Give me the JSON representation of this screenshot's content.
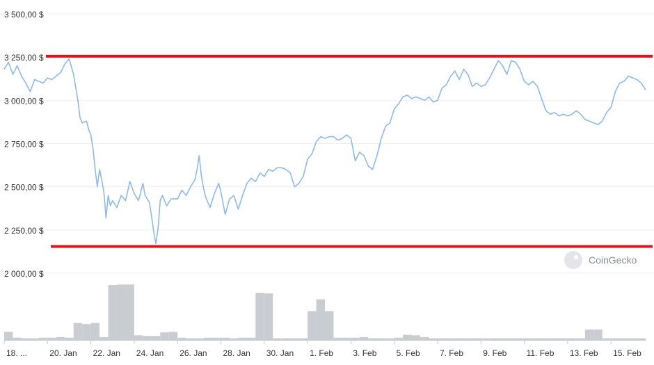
{
  "chart_data": {
    "type": "line",
    "watermark": "CoinGecko",
    "colors": {
      "price_line": "#8fb8ec",
      "volume": "#c9cdd2",
      "support_resistance": "#e0141e",
      "gridline": "#eef0f2"
    },
    "y_axis": {
      "ylim": [
        2000,
        3500
      ],
      "ticks": [
        {
          "value": 3500,
          "label": "3 500,00 $"
        },
        {
          "value": 3250,
          "label": "3 250,00 $"
        },
        {
          "value": 3000,
          "label": "3 000,00 $"
        },
        {
          "value": 2750,
          "label": "2 750,00 $"
        },
        {
          "value": 2500,
          "label": "2 500,00 $"
        },
        {
          "value": 2250,
          "label": "2 250,00 $"
        },
        {
          "value": 2000,
          "label": "2 000,00 $"
        }
      ]
    },
    "x_axis": {
      "xlim": [
        0,
        29.6
      ],
      "ticks": [
        {
          "value": 0.0,
          "label": "18. ..."
        },
        {
          "value": 2.0,
          "label": "20. Jan"
        },
        {
          "value": 4.0,
          "label": "22. Jan"
        },
        {
          "value": 6.0,
          "label": "24. Jan"
        },
        {
          "value": 8.0,
          "label": "26. Jan"
        },
        {
          "value": 10.0,
          "label": "28. Jan"
        },
        {
          "value": 12.0,
          "label": "30. Jan"
        },
        {
          "value": 14.0,
          "label": "1. Feb"
        },
        {
          "value": 16.0,
          "label": "3. Feb"
        },
        {
          "value": 18.0,
          "label": "5. Feb"
        },
        {
          "value": 20.0,
          "label": "7. Feb"
        },
        {
          "value": 22.0,
          "label": "9. Feb"
        },
        {
          "value": 24.0,
          "label": "11. Feb"
        },
        {
          "value": 26.0,
          "label": "13. Feb"
        },
        {
          "value": 28.0,
          "label": "15. Feb"
        }
      ]
    },
    "horizontal_lines": [
      {
        "name": "resistance",
        "y": 3255
      },
      {
        "name": "support",
        "y": 2155
      }
    ],
    "price_series": {
      "points": [
        [
          0.0,
          3180
        ],
        [
          0.2,
          3220
        ],
        [
          0.4,
          3150
        ],
        [
          0.6,
          3200
        ],
        [
          0.8,
          3140
        ],
        [
          1.0,
          3100
        ],
        [
          1.2,
          3050
        ],
        [
          1.4,
          3120
        ],
        [
          1.6,
          3110
        ],
        [
          1.8,
          3100
        ],
        [
          2.0,
          3130
        ],
        [
          2.2,
          3120
        ],
        [
          2.4,
          3140
        ],
        [
          2.6,
          3160
        ],
        [
          2.8,
          3210
        ],
        [
          3.0,
          3240
        ],
        [
          3.2,
          3150
        ],
        [
          3.4,
          3000
        ],
        [
          3.5,
          2900
        ],
        [
          3.6,
          2870
        ],
        [
          3.8,
          2880
        ],
        [
          3.9,
          2830
        ],
        [
          4.0,
          2800
        ],
        [
          4.1,
          2720
        ],
        [
          4.2,
          2600
        ],
        [
          4.3,
          2500
        ],
        [
          4.4,
          2600
        ],
        [
          4.5,
          2540
        ],
        [
          4.6,
          2470
        ],
        [
          4.7,
          2320
        ],
        [
          4.8,
          2450
        ],
        [
          4.9,
          2390
        ],
        [
          5.0,
          2420
        ],
        [
          5.2,
          2380
        ],
        [
          5.4,
          2450
        ],
        [
          5.6,
          2420
        ],
        [
          5.8,
          2530
        ],
        [
          6.0,
          2460
        ],
        [
          6.2,
          2420
        ],
        [
          6.4,
          2520
        ],
        [
          6.5,
          2450
        ],
        [
          6.7,
          2410
        ],
        [
          6.8,
          2330
        ],
        [
          6.9,
          2240
        ],
        [
          7.0,
          2170
        ],
        [
          7.1,
          2260
        ],
        [
          7.2,
          2420
        ],
        [
          7.3,
          2450
        ],
        [
          7.5,
          2390
        ],
        [
          7.7,
          2430
        ],
        [
          8.0,
          2430
        ],
        [
          8.2,
          2480
        ],
        [
          8.4,
          2450
        ],
        [
          8.6,
          2500
        ],
        [
          8.8,
          2540
        ],
        [
          8.9,
          2600
        ],
        [
          9.0,
          2680
        ],
        [
          9.1,
          2560
        ],
        [
          9.2,
          2490
        ],
        [
          9.3,
          2440
        ],
        [
          9.5,
          2380
        ],
        [
          9.7,
          2460
        ],
        [
          9.9,
          2520
        ],
        [
          10.0,
          2470
        ],
        [
          10.2,
          2340
        ],
        [
          10.4,
          2430
        ],
        [
          10.6,
          2450
        ],
        [
          10.8,
          2370
        ],
        [
          11.0,
          2450
        ],
        [
          11.2,
          2520
        ],
        [
          11.4,
          2550
        ],
        [
          11.6,
          2530
        ],
        [
          11.8,
          2580
        ],
        [
          12.0,
          2560
        ],
        [
          12.2,
          2600
        ],
        [
          12.4,
          2590
        ],
        [
          12.6,
          2610
        ],
        [
          12.8,
          2610
        ],
        [
          13.0,
          2600
        ],
        [
          13.2,
          2580
        ],
        [
          13.4,
          2500
        ],
        [
          13.6,
          2520
        ],
        [
          13.8,
          2560
        ],
        [
          14.0,
          2660
        ],
        [
          14.2,
          2690
        ],
        [
          14.4,
          2760
        ],
        [
          14.6,
          2790
        ],
        [
          14.8,
          2780
        ],
        [
          15.0,
          2790
        ],
        [
          15.2,
          2790
        ],
        [
          15.4,
          2770
        ],
        [
          15.6,
          2780
        ],
        [
          15.8,
          2800
        ],
        [
          16.0,
          2780
        ],
        [
          16.2,
          2650
        ],
        [
          16.4,
          2700
        ],
        [
          16.6,
          2680
        ],
        [
          16.8,
          2620
        ],
        [
          17.0,
          2600
        ],
        [
          17.2,
          2680
        ],
        [
          17.4,
          2780
        ],
        [
          17.6,
          2850
        ],
        [
          17.8,
          2870
        ],
        [
          18.0,
          2950
        ],
        [
          18.2,
          2980
        ],
        [
          18.4,
          3020
        ],
        [
          18.6,
          3030
        ],
        [
          18.8,
          3010
        ],
        [
          19.0,
          3020
        ],
        [
          19.2,
          3010
        ],
        [
          19.4,
          3000
        ],
        [
          19.6,
          3020
        ],
        [
          19.8,
          2990
        ],
        [
          20.0,
          3000
        ],
        [
          20.2,
          3070
        ],
        [
          20.4,
          3090
        ],
        [
          20.6,
          3140
        ],
        [
          20.8,
          3170
        ],
        [
          21.0,
          3120
        ],
        [
          21.2,
          3180
        ],
        [
          21.4,
          3150
        ],
        [
          21.6,
          3080
        ],
        [
          21.8,
          3100
        ],
        [
          22.0,
          3080
        ],
        [
          22.2,
          3090
        ],
        [
          22.4,
          3130
        ],
        [
          22.6,
          3180
        ],
        [
          22.8,
          3230
        ],
        [
          23.0,
          3200
        ],
        [
          23.2,
          3150
        ],
        [
          23.4,
          3230
        ],
        [
          23.6,
          3220
        ],
        [
          23.8,
          3180
        ],
        [
          24.0,
          3110
        ],
        [
          24.2,
          3090
        ],
        [
          24.4,
          3110
        ],
        [
          24.6,
          3080
        ],
        [
          24.8,
          3010
        ],
        [
          25.0,
          2940
        ],
        [
          25.2,
          2920
        ],
        [
          25.4,
          2930
        ],
        [
          25.6,
          2910
        ],
        [
          25.8,
          2920
        ],
        [
          26.0,
          2910
        ],
        [
          26.2,
          2920
        ],
        [
          26.4,
          2940
        ],
        [
          26.6,
          2920
        ],
        [
          26.8,
          2890
        ],
        [
          27.0,
          2880
        ],
        [
          27.2,
          2870
        ],
        [
          27.4,
          2860
        ],
        [
          27.6,
          2880
        ],
        [
          27.8,
          2930
        ],
        [
          28.0,
          2960
        ],
        [
          28.2,
          3050
        ],
        [
          28.4,
          3100
        ],
        [
          28.6,
          3110
        ],
        [
          28.8,
          3140
        ],
        [
          29.0,
          3130
        ],
        [
          29.2,
          3120
        ],
        [
          29.4,
          3100
        ],
        [
          29.6,
          3060
        ]
      ]
    },
    "volume_series": {
      "max": 1.0,
      "bars": [
        [
          0.0,
          0.15
        ],
        [
          0.4,
          0.05
        ],
        [
          0.8,
          0.04
        ],
        [
          1.2,
          0.04
        ],
        [
          1.6,
          0.05
        ],
        [
          2.0,
          0.05
        ],
        [
          2.4,
          0.06
        ],
        [
          2.8,
          0.05
        ],
        [
          3.2,
          0.3
        ],
        [
          3.6,
          0.28
        ],
        [
          4.0,
          0.3
        ],
        [
          4.4,
          0.06
        ],
        [
          4.8,
          0.94
        ],
        [
          5.2,
          0.95
        ],
        [
          5.6,
          0.95
        ],
        [
          6.0,
          0.09
        ],
        [
          6.4,
          0.08
        ],
        [
          6.8,
          0.08
        ],
        [
          7.2,
          0.14
        ],
        [
          7.6,
          0.15
        ],
        [
          8.0,
          0.05
        ],
        [
          8.4,
          0.04
        ],
        [
          8.8,
          0.04
        ],
        [
          9.2,
          0.05
        ],
        [
          9.6,
          0.05
        ],
        [
          10.0,
          0.05
        ],
        [
          10.4,
          0.04
        ],
        [
          10.8,
          0.05
        ],
        [
          11.2,
          0.05
        ],
        [
          11.6,
          0.81
        ],
        [
          12.0,
          0.8
        ],
        [
          12.4,
          0.04
        ],
        [
          12.8,
          0.04
        ],
        [
          13.2,
          0.04
        ],
        [
          13.6,
          0.04
        ],
        [
          14.0,
          0.5
        ],
        [
          14.4,
          0.7
        ],
        [
          14.8,
          0.5
        ],
        [
          15.2,
          0.05
        ],
        [
          15.6,
          0.05
        ],
        [
          16.0,
          0.05
        ],
        [
          16.4,
          0.06
        ],
        [
          16.8,
          0.04
        ],
        [
          17.2,
          0.04
        ],
        [
          17.6,
          0.04
        ],
        [
          18.0,
          0.05
        ],
        [
          18.4,
          0.1
        ],
        [
          18.8,
          0.09
        ],
        [
          19.2,
          0.06
        ],
        [
          19.6,
          0.04
        ],
        [
          20.0,
          0.04
        ],
        [
          20.4,
          0.04
        ],
        [
          20.8,
          0.04
        ],
        [
          21.2,
          0.04
        ],
        [
          21.6,
          0.04
        ],
        [
          22.0,
          0.04
        ],
        [
          22.4,
          0.04
        ],
        [
          22.8,
          0.04
        ],
        [
          23.2,
          0.04
        ],
        [
          23.6,
          0.04
        ],
        [
          24.0,
          0.04
        ],
        [
          24.4,
          0.04
        ],
        [
          24.8,
          0.04
        ],
        [
          25.2,
          0.04
        ],
        [
          25.6,
          0.04
        ],
        [
          26.0,
          0.04
        ],
        [
          26.4,
          0.04
        ],
        [
          26.8,
          0.19
        ],
        [
          27.2,
          0.19
        ],
        [
          27.6,
          0.04
        ],
        [
          28.0,
          0.04
        ],
        [
          28.4,
          0.04
        ],
        [
          28.8,
          0.04
        ],
        [
          29.2,
          0.04
        ]
      ]
    }
  }
}
